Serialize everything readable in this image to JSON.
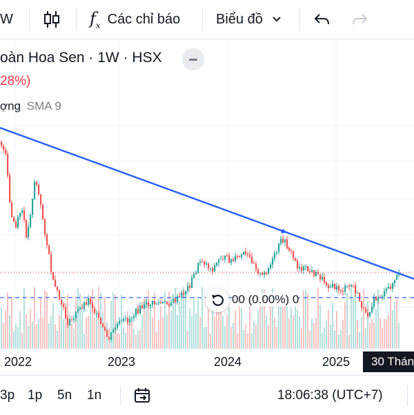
{
  "toolbar": {
    "interval_label": "W",
    "indicators_label": "Các chỉ báo",
    "layout_label": "Biểu đồ",
    "icons": [
      "candles-icon",
      "fx-icon",
      "chevron-down-icon",
      "undo-icon",
      "redo-icon"
    ]
  },
  "legend": {
    "title": "oàn Hoa Sen · 1W · HSX",
    "change": "28%)",
    "indicator_prefix": "ợng",
    "indicator_name": "SMA 9"
  },
  "position_label": "00 (0.00%)  0",
  "x_axis": {
    "ticks": [
      "2022",
      "2023",
      "2024",
      "2025"
    ]
  },
  "crosshair_date": "30 Thán",
  "bottom_bar": {
    "ranges": [
      "3p",
      "1p",
      "5n",
      "1n"
    ],
    "clock": "18:06:38 (UTC+7)"
  },
  "colors": {
    "up": "#26a69a",
    "down": "#ef5350",
    "trendline": "#2962ff",
    "price_line": "#f23645",
    "dashed_line": "#2962ff"
  },
  "chart_data": {
    "type": "candlestick",
    "x_ticks": [
      "2022",
      "2023",
      "2024",
      "2025"
    ],
    "trendline": "descending",
    "series": [
      {
        "name": "SMA 9"
      }
    ]
  }
}
